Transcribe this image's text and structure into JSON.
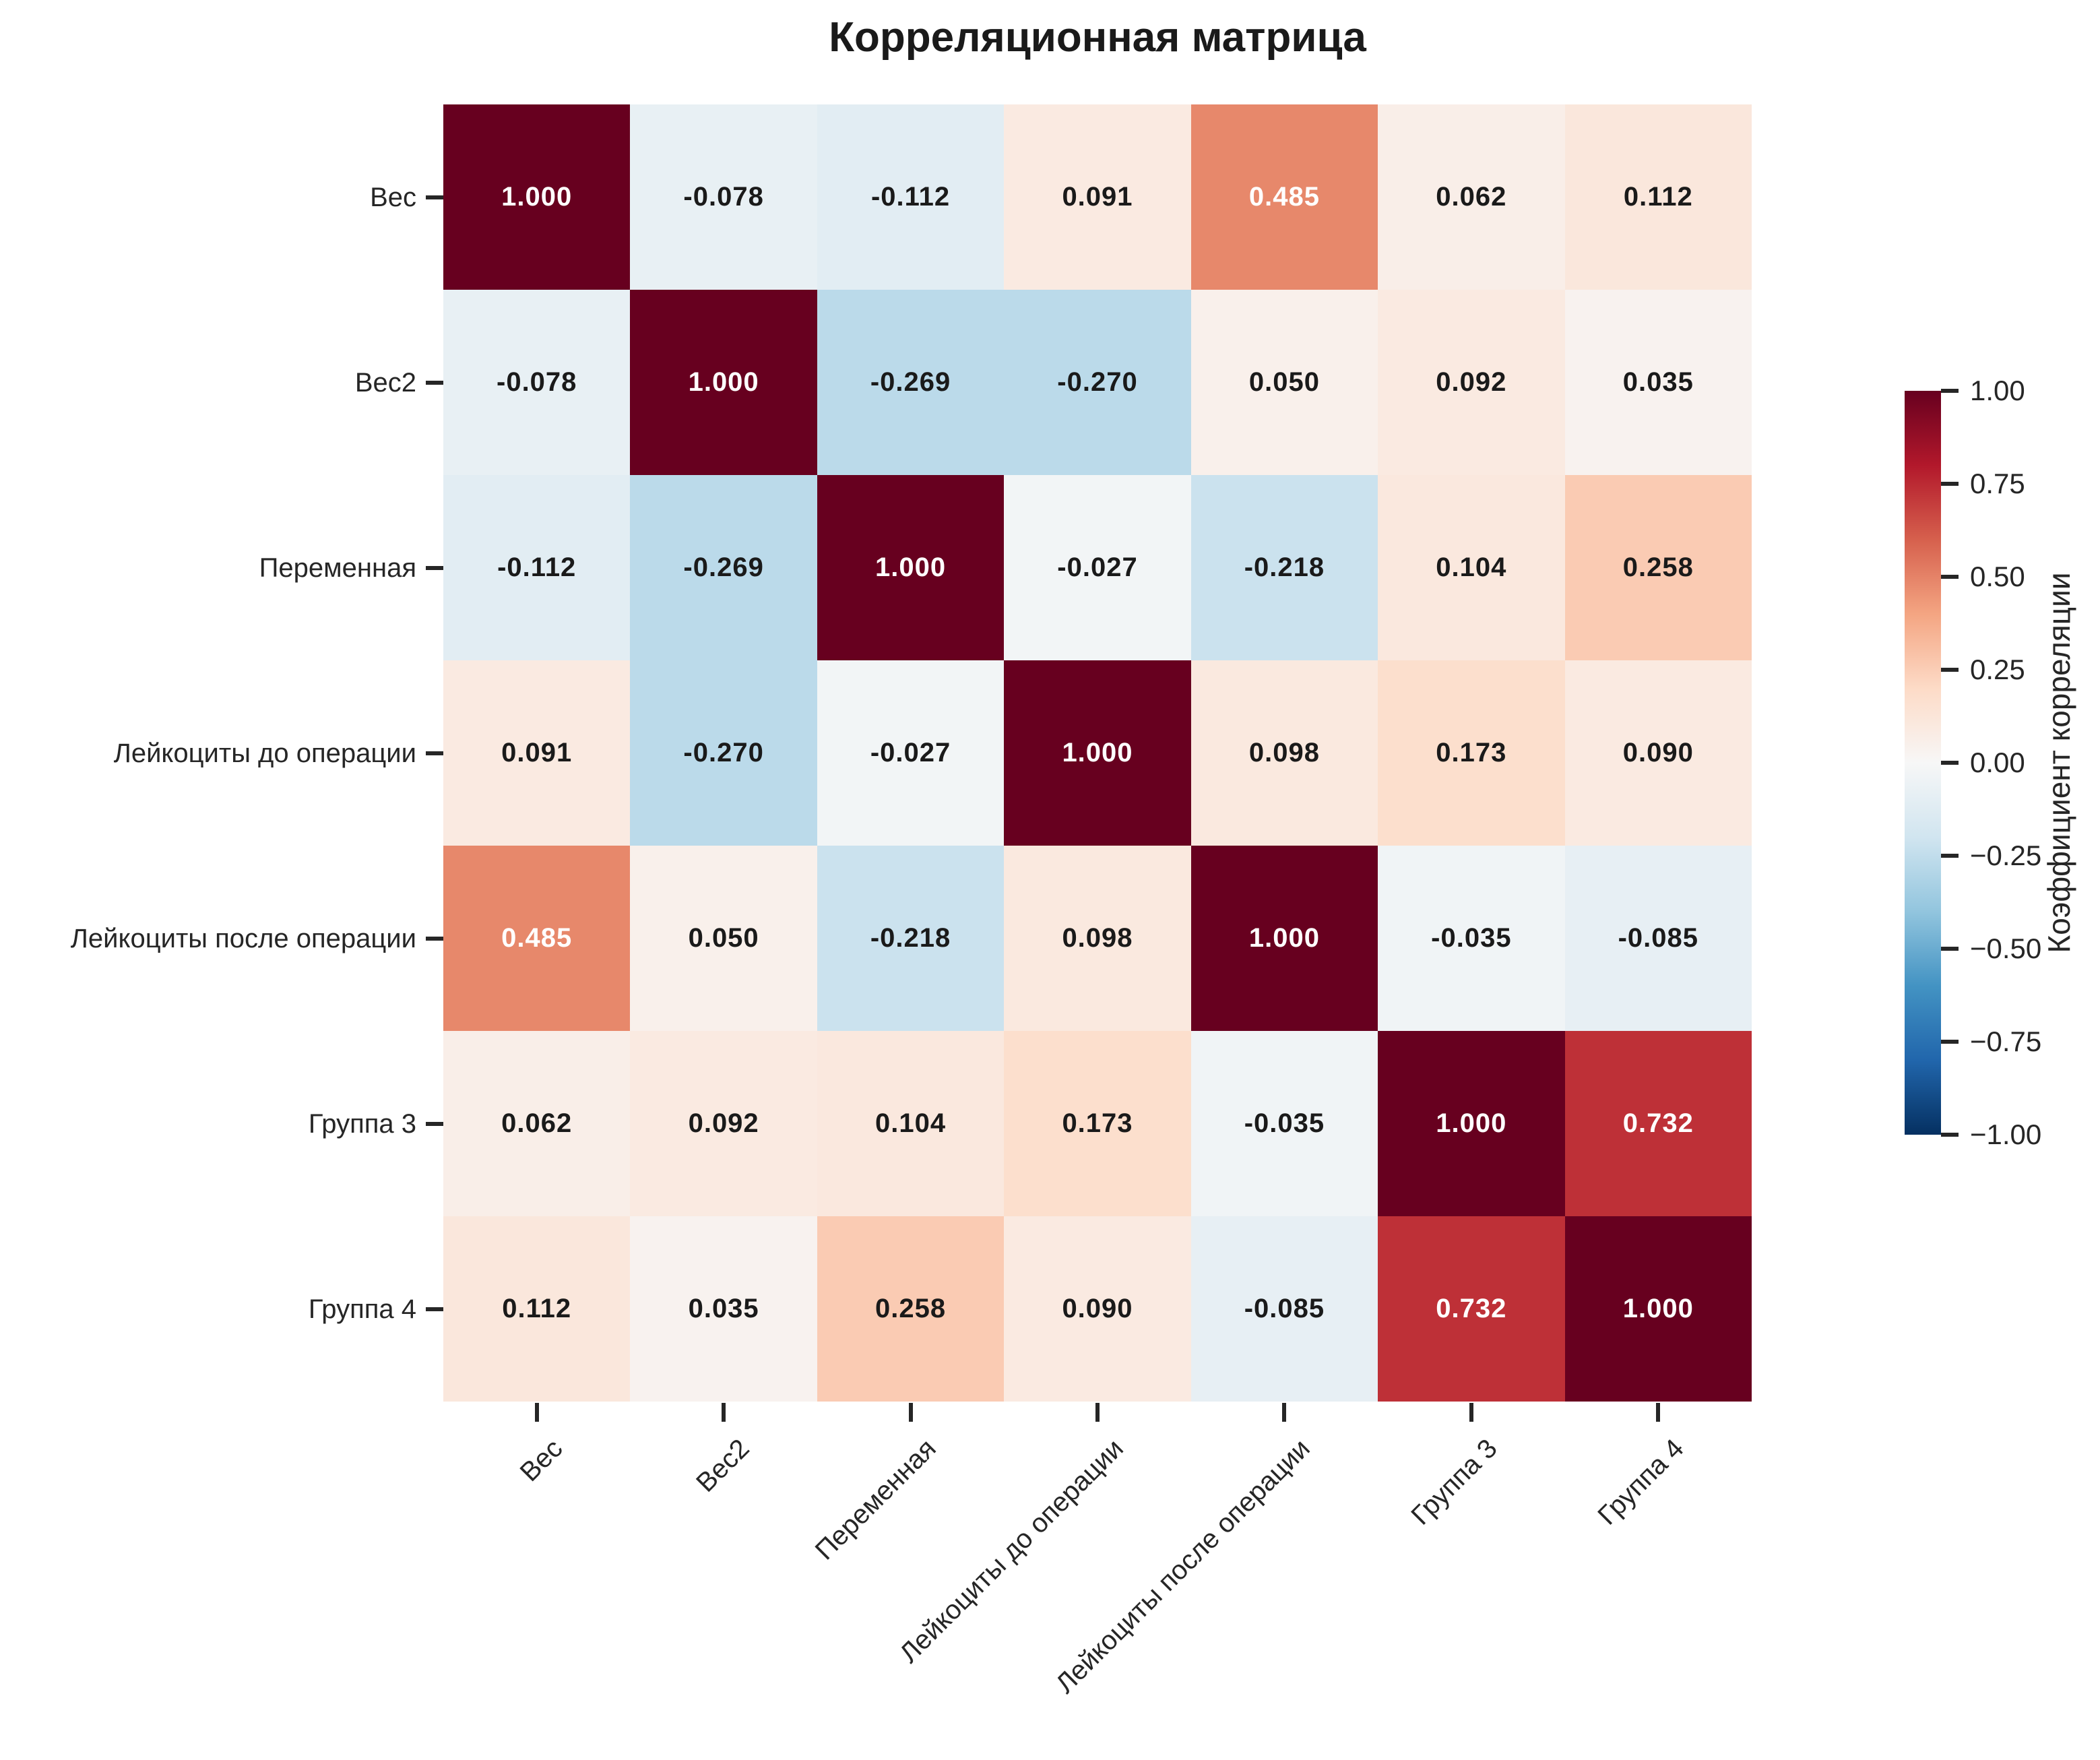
{
  "title": "Корреляционная матрица",
  "chart_data": {
    "type": "heatmap",
    "title": "Корреляционная матрица",
    "categories": [
      "Вес",
      "Вес2",
      "Переменная",
      "Лейкоциты до операции",
      "Лейкоциты после операции",
      "Группа 3",
      "Группа 4"
    ],
    "matrix": [
      [
        1.0,
        -0.078,
        -0.112,
        0.091,
        0.485,
        0.062,
        0.112
      ],
      [
        -0.078,
        1.0,
        -0.269,
        -0.27,
        0.05,
        0.092,
        0.035
      ],
      [
        -0.112,
        -0.269,
        1.0,
        -0.027,
        -0.218,
        0.104,
        0.258
      ],
      [
        0.091,
        -0.27,
        -0.027,
        1.0,
        0.098,
        0.173,
        0.09
      ],
      [
        0.485,
        0.05,
        -0.218,
        0.098,
        1.0,
        -0.035,
        -0.085
      ],
      [
        0.062,
        0.092,
        0.104,
        0.173,
        -0.035,
        1.0,
        0.732
      ],
      [
        0.112,
        0.035,
        0.258,
        0.09,
        -0.085,
        0.732,
        1.0
      ]
    ],
    "value_decimals": 3,
    "vmin": -1,
    "vmax": 1,
    "colormap": "RdBu_r",
    "grid": false,
    "colorbar": {
      "label": "Коэффициент корреляции",
      "tick_labels": [
        "1.00",
        "0.75",
        "0.50",
        "0.25",
        "0.00",
        "−0.25",
        "−0.50",
        "−0.75",
        "−1.00"
      ],
      "position": "right"
    }
  },
  "colors": {
    "background": "#ffffff",
    "text": "#262626",
    "annotation_dark": "#1a1a1a",
    "annotation_light": "#ffffff",
    "tick": "#262626",
    "colormap_stops_low_to_high": [
      "#053061",
      "#2166ac",
      "#4393c3",
      "#92c5de",
      "#d1e5f0",
      "#f7f7f7",
      "#fddbc7",
      "#f4a582",
      "#d6604d",
      "#b2182b",
      "#67001f"
    ]
  }
}
